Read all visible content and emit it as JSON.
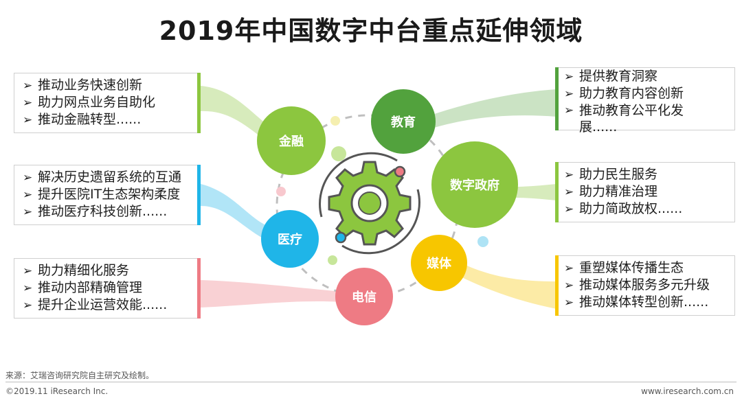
{
  "title": "2019年中国数字中台重点延伸领域",
  "hub": {
    "icon": "gear-icon"
  },
  "colors": {
    "finance": "#8cc63f",
    "education": "#52a23d",
    "government": "#8cc63f",
    "healthcare": "#1fb5e8",
    "telecom": "#ee7b84",
    "media": "#f7c600",
    "gear": "#8cc63f",
    "gear_outline": "#555555"
  },
  "domains": {
    "finance": {
      "label": "金融",
      "items": [
        "推动业务快速创新",
        "助力网点业务自助化",
        "推动金融转型......"
      ]
    },
    "healthcare": {
      "label": "医疗",
      "items": [
        "解决历史遗留系统的互通",
        "提升医院IT生态架构柔度",
        "推动医疗科技创新......"
      ]
    },
    "telecom": {
      "label": "电信",
      "items": [
        "助力精细化服务",
        "推动内部精确管理",
        "提升企业运营效能......"
      ]
    },
    "education": {
      "label": "教育",
      "items": [
        "提供教育洞察",
        "助力教育内容创新",
        "推动教育公平化发展......"
      ]
    },
    "government": {
      "label": "数字政府",
      "items": [
        "助力民生服务",
        "助力精准治理",
        "助力简政放权......"
      ]
    },
    "media": {
      "label": "媒体",
      "items": [
        "重塑媒体传播生态",
        "推动媒体服务多元升级",
        "推动媒体转型创新......"
      ]
    }
  },
  "footer": {
    "source": "来源：艾瑞咨询研究院自主研究及绘制。",
    "copyright": "©2019.11 iResearch Inc.",
    "website": "www.iresearch.com.cn"
  }
}
